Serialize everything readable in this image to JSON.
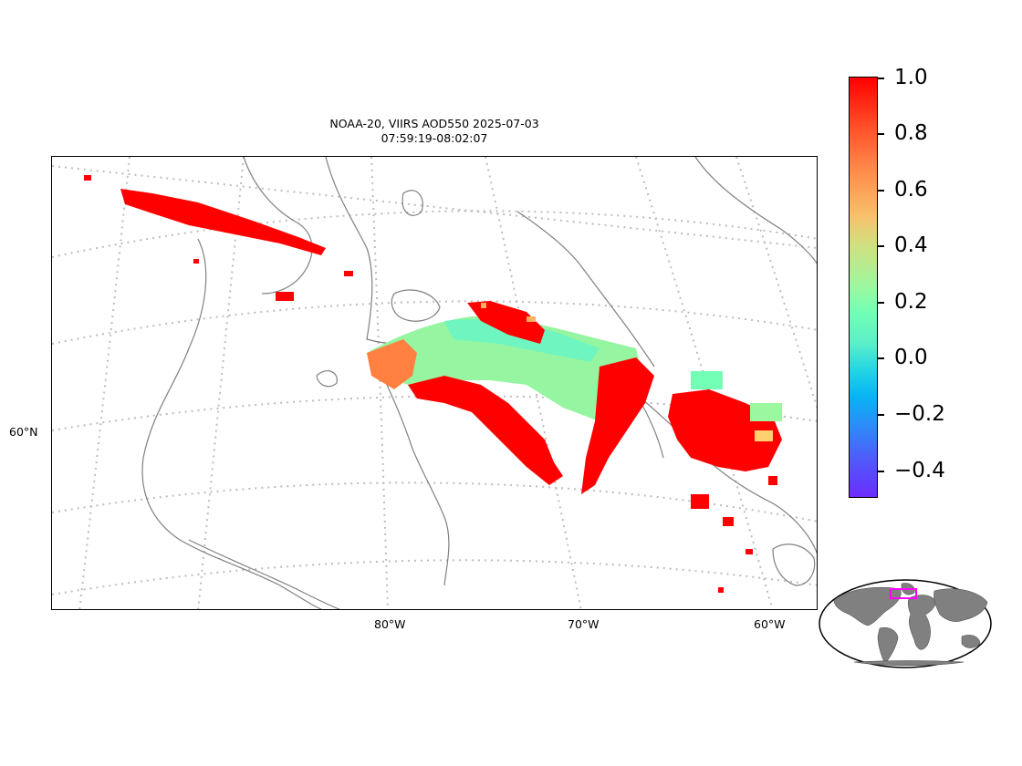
{
  "title": {
    "line1": "NOAA-20, VIIRS AOD550 2025-07-03",
    "line2": "07:59:19-08:02:07"
  },
  "map": {
    "lat_labels": [
      "60°N"
    ],
    "lon_labels": [
      "80°W",
      "70°W",
      "60°W"
    ],
    "gridlines": "dotted",
    "coastline_color": "#808080"
  },
  "colorbar": {
    "labels": [
      "1.0",
      "0.8",
      "0.6",
      "0.4",
      "0.2",
      "0.0",
      "−0.2",
      "−0.4"
    ],
    "range": [
      -0.5,
      1.0
    ],
    "colormap": "rainbow",
    "high_color": "#ff0000",
    "low_color": "#7f00ff"
  },
  "inset": {
    "land_color": "#808080",
    "highlight_color": "#ff00ff"
  }
}
